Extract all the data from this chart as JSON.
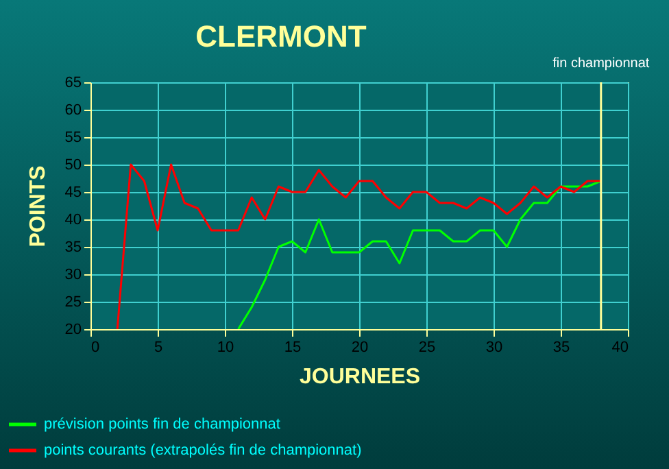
{
  "chart_data": {
    "type": "line",
    "title": "CLERMONT",
    "xlabel": "JOURNEES",
    "ylabel": "POINTS",
    "xlim": [
      0,
      40
    ],
    "xticks": [
      0,
      5,
      10,
      15,
      20,
      25,
      30,
      35,
      40
    ],
    "ylim": [
      20,
      65
    ],
    "yticks": [
      20,
      25,
      30,
      35,
      40,
      45,
      50,
      55,
      60,
      65
    ],
    "grid": true,
    "legend": "bottom left",
    "ref_lines": [
      {
        "axis": "x",
        "value": 38,
        "label": "fin championnat",
        "color": "#ffff99"
      }
    ],
    "series": [
      {
        "name": "prévision points fin de championnat",
        "color": "#00ff00",
        "x": [
          11,
          12,
          13,
          14,
          15,
          16,
          17,
          18,
          19,
          20,
          21,
          22,
          23,
          24,
          25,
          26,
          27,
          28,
          29,
          30,
          31,
          32,
          33,
          34,
          35,
          36,
          37,
          38
        ],
        "values": [
          20,
          24,
          29,
          35,
          36,
          34,
          40,
          34,
          34,
          34,
          36,
          36,
          32,
          38,
          38,
          38,
          36,
          36,
          38,
          38,
          35,
          40,
          43,
          43,
          46,
          46,
          46,
          47
        ]
      },
      {
        "name": "points courants (extrapolés fin de championnat)",
        "color": "#ff0000",
        "x": [
          2,
          3,
          4,
          5,
          6,
          7,
          8,
          9,
          10,
          11,
          12,
          13,
          14,
          15,
          16,
          17,
          18,
          19,
          20,
          21,
          22,
          23,
          24,
          25,
          26,
          27,
          28,
          29,
          30,
          31,
          32,
          33,
          34,
          35,
          36,
          37,
          38
        ],
        "values": [
          20,
          50,
          47,
          38,
          50,
          43,
          42,
          38,
          38,
          38,
          44,
          40,
          46,
          45,
          45,
          49,
          46,
          44,
          47,
          47,
          44,
          42,
          45,
          45,
          43,
          43,
          42,
          44,
          43,
          41,
          43,
          46,
          44,
          46,
          45,
          47,
          47
        ]
      }
    ]
  }
}
